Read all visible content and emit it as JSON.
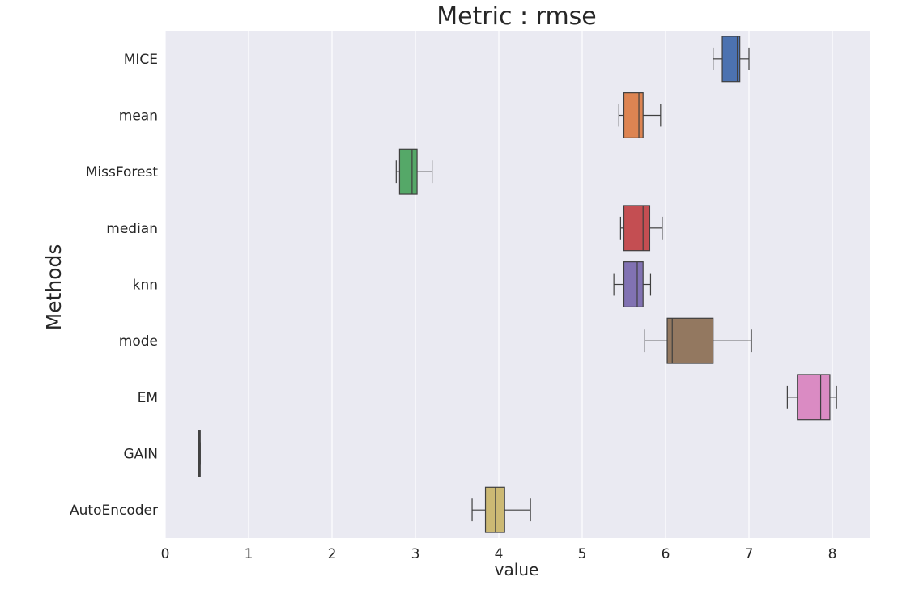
{
  "chart_data": {
    "type": "boxplot",
    "orientation": "horizontal",
    "title": "Metric : rmse",
    "xlabel": "value",
    "ylabel": "Methods",
    "xlim": [
      0,
      8.45
    ],
    "xticks": [
      0,
      1,
      2,
      3,
      4,
      5,
      6,
      7,
      8
    ],
    "grid": "vertical",
    "background": "#eaeaf2",
    "grid_color": "#ffffff",
    "line_color": "#3f3f3f",
    "categories": [
      "MICE",
      "mean",
      "MissForest",
      "median",
      "knn",
      "mode",
      "EM",
      "GAIN",
      "AutoEncoder"
    ],
    "series": [
      {
        "category": "MICE",
        "color": "#4c72b0",
        "whisker_low": 6.57,
        "q1": 6.68,
        "median": 6.86,
        "q3": 6.89,
        "whisker_high": 7.0
      },
      {
        "category": "mean",
        "color": "#dd8452",
        "whisker_low": 5.44,
        "q1": 5.5,
        "median": 5.68,
        "q3": 5.73,
        "whisker_high": 5.94
      },
      {
        "category": "MissForest",
        "color": "#55a868",
        "whisker_low": 2.77,
        "q1": 2.81,
        "median": 2.96,
        "q3": 3.02,
        "whisker_high": 3.2
      },
      {
        "category": "median",
        "color": "#c44e52",
        "whisker_low": 5.46,
        "q1": 5.5,
        "median": 5.73,
        "q3": 5.81,
        "whisker_high": 5.96
      },
      {
        "category": "knn",
        "color": "#8172b3",
        "whisker_low": 5.38,
        "q1": 5.5,
        "median": 5.66,
        "q3": 5.73,
        "whisker_high": 5.82
      },
      {
        "category": "mode",
        "color": "#937860",
        "whisker_low": 5.75,
        "q1": 6.02,
        "median": 6.08,
        "q3": 6.57,
        "whisker_high": 7.03
      },
      {
        "category": "EM",
        "color": "#da8bc3",
        "whisker_low": 7.46,
        "q1": 7.58,
        "median": 7.86,
        "q3": 7.97,
        "whisker_high": 8.05
      },
      {
        "category": "GAIN",
        "color": "#8c8c8c",
        "whisker_low": 0.4,
        "q1": 0.4,
        "median": 0.41,
        "q3": 0.42,
        "whisker_high": 0.42
      },
      {
        "category": "AutoEncoder",
        "color": "#ccb974",
        "whisker_low": 3.68,
        "q1": 3.84,
        "median": 3.96,
        "q3": 4.07,
        "whisker_high": 4.38
      }
    ]
  }
}
